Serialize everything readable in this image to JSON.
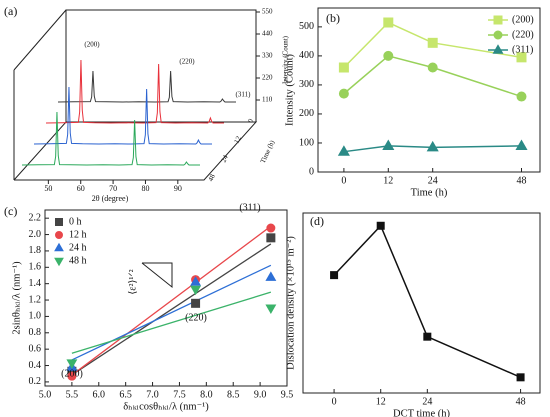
{
  "chart_data": [
    {
      "type": "waterfall",
      "label": "(a)",
      "xlabel": "2θ (degree)",
      "ylabel": "Intensity (Count)",
      "zlabel": "Time (h)",
      "x": [
        40,
        45,
        50,
        50.4,
        50.8,
        51.2,
        51.6,
        55,
        60,
        65,
        70,
        74,
        74.4,
        74.8,
        75.2,
        75.6,
        80,
        85,
        90,
        90.4,
        90.8,
        91.2,
        91.6,
        95
      ],
      "xlim": [
        40,
        95
      ],
      "xticks": [
        50,
        60,
        70,
        80,
        90
      ],
      "ylim": [
        0,
        550
      ],
      "yticks": [
        110,
        220,
        330,
        440,
        550
      ],
      "zticks": [
        0,
        12,
        24,
        48
      ],
      "series": [
        {
          "name": "0 h",
          "color": "#3a3a3a",
          "values": [
            15,
            16,
            17,
            40,
            170,
            45,
            17,
            16,
            15,
            16,
            15,
            16,
            38,
            170,
            42,
            17,
            15,
            16,
            15,
            20,
            30,
            21,
            15,
            15
          ]
        },
        {
          "name": "12 h",
          "color": "#e8303a",
          "values": [
            15,
            16,
            18,
            70,
            330,
            80,
            18,
            16,
            15,
            16,
            15,
            17,
            65,
            310,
            72,
            17,
            15,
            16,
            15,
            22,
            40,
            23,
            15,
            15
          ]
        },
        {
          "name": "24 h",
          "color": "#2a62d0",
          "values": [
            15,
            16,
            18,
            62,
            300,
            70,
            18,
            16,
            15,
            16,
            15,
            17,
            60,
            290,
            66,
            17,
            15,
            16,
            15,
            21,
            35,
            22,
            15,
            15
          ]
        },
        {
          "name": "48 h",
          "color": "#2aa85a",
          "values": [
            15,
            16,
            17,
            58,
            280,
            62,
            17,
            16,
            15,
            16,
            15,
            17,
            52,
            240,
            58,
            17,
            15,
            16,
            15,
            20,
            30,
            21,
            15,
            15
          ]
        }
      ],
      "annotations": [
        "(200)",
        "(220)",
        "(311)"
      ]
    },
    {
      "type": "line",
      "label": "(b)",
      "xlabel": "Time (h)",
      "ylabel": "Intensity (Count)",
      "x": [
        0,
        12,
        24,
        48
      ],
      "xlim": [
        -7,
        53
      ],
      "xticks": [
        0,
        12,
        24,
        48
      ],
      "ylim": [
        0,
        565
      ],
      "yticks": [
        0,
        100,
        200,
        300,
        400,
        500
      ],
      "series": [
        {
          "name": "(200)",
          "color": "#c6e66c",
          "marker": "square",
          "values": [
            360,
            515,
            445,
            395
          ]
        },
        {
          "name": "(220)",
          "color": "#98d15a",
          "marker": "circle",
          "values": [
            270,
            400,
            360,
            260
          ]
        },
        {
          "name": "(311)",
          "color": "#2a8a86",
          "marker": "triangle",
          "values": [
            70,
            90,
            85,
            90
          ]
        }
      ]
    },
    {
      "type": "scatter",
      "label": "(c)",
      "xlabel": "δₕₖₗcosθₕₖₗ/λ (nm⁻¹)",
      "ylabel": "2sinθₕₖₗ/λ (nm⁻¹)",
      "x": [
        5.5,
        7.8,
        9.2
      ],
      "xlim": [
        5.0,
        9.5
      ],
      "xticks": [
        {
          "value": 5,
          "label": "5.0"
        },
        5.5,
        {
          "value": 6,
          "label": "6.0"
        },
        6.5,
        {
          "value": 7,
          "label": "7.0"
        },
        7.5,
        {
          "value": 8,
          "label": "8.0"
        },
        8.5,
        {
          "value": 9,
          "label": "9.0"
        },
        9.5
      ],
      "ylim": [
        0.15,
        2.3
      ],
      "yticks": [
        0.2,
        0.4,
        0.6,
        0.8,
        {
          "value": 1,
          "label": "1.0"
        },
        1.2,
        1.4,
        1.6,
        1.8,
        {
          "value": 2,
          "label": "2.0"
        },
        2.2
      ],
      "series": [
        {
          "name": "0 h",
          "color": "#444444",
          "marker": "square",
          "values": [
            0.33,
            1.16,
            1.96
          ]
        },
        {
          "name": "12 h",
          "color": "#e8474b",
          "marker": "circle",
          "values": [
            0.27,
            1.45,
            2.08
          ]
        },
        {
          "name": "24 h",
          "color": "#2d6fd6",
          "marker": "triangle",
          "values": [
            0.38,
            1.42,
            1.48
          ]
        },
        {
          "name": "48 h",
          "color": "#3bb36a",
          "marker": "triangle-down",
          "values": [
            0.43,
            1.33,
            1.1
          ]
        }
      ],
      "annotations": [
        "(200)",
        "(220)",
        "(311)",
        "⟨ε²⟩¹ᐟ²"
      ]
    },
    {
      "type": "line",
      "label": "(d)",
      "xlabel": "DCT time (h)",
      "ylabel": "Dislocation density (×10¹⁵ m⁻²)",
      "x": [
        0,
        12,
        24,
        48
      ],
      "xlim": [
        -8,
        53
      ],
      "xticks": [
        0,
        12,
        24,
        48
      ],
      "ylim": [
        1.5,
        4.6
      ],
      "series": [
        {
          "color": "#111111",
          "marker": "square",
          "values": [
            3.53,
            4.38,
            2.47,
            1.77
          ]
        }
      ]
    }
  ]
}
